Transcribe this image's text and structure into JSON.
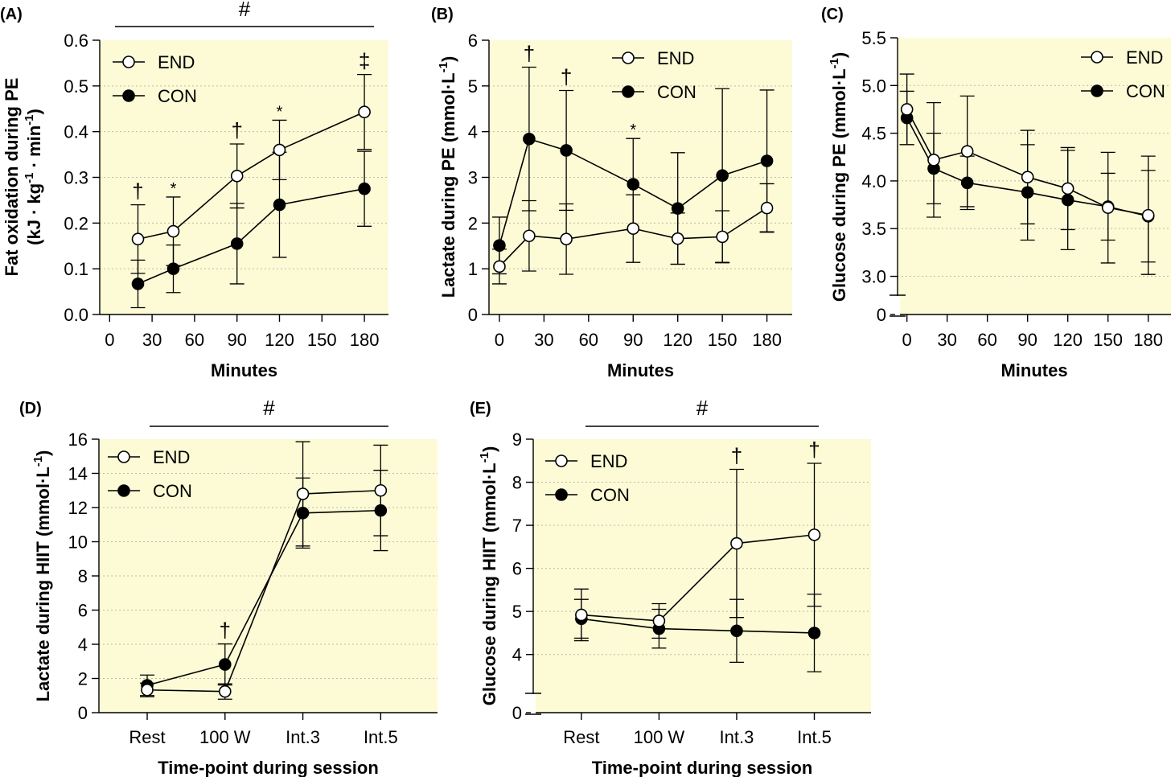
{
  "chart_data": [
    {
      "type": "line",
      "panel": "(A)",
      "ylabel": [
        "Fat oxidation during PE",
        "(kJ · kg-1 · min-1)"
      ],
      "xlabel": "Minutes",
      "ylim": [
        0,
        0.6
      ],
      "yticks": [
        "0.0",
        "0.1",
        "0.2",
        "0.3",
        "0.4",
        "0.5",
        "0.6"
      ],
      "xlim": [
        -7,
        197
      ],
      "xticks": [
        "0",
        "30",
        "60",
        "90",
        "120",
        "150",
        "180"
      ],
      "grid": true,
      "legend": [
        "END",
        "CON"
      ],
      "legend_position": "top-left",
      "bracket_label": "#",
      "x": [
        20,
        45,
        90,
        120,
        180
      ],
      "series": [
        {
          "name": "END",
          "marker": "open",
          "values": [
            0.165,
            0.182,
            0.303,
            0.36,
            0.443
          ],
          "err": [
            0.075,
            0.075,
            0.07,
            0.065,
            0.082
          ]
        },
        {
          "name": "CON",
          "marker": "filled",
          "values": [
            0.067,
            0.1,
            0.155,
            0.24,
            0.275
          ],
          "err": [
            0.052,
            0.052,
            0.088,
            0.115,
            0.082
          ]
        }
      ],
      "annotations": [
        {
          "x": 20,
          "text": "†"
        },
        {
          "x": 45,
          "text": "*"
        },
        {
          "x": 90,
          "text": "†"
        },
        {
          "x": 120,
          "text": "*"
        },
        {
          "x": 180,
          "text": "‡"
        }
      ]
    },
    {
      "type": "line",
      "panel": "(B)",
      "ylabel": [
        "Lactate during PE (mmol·L-1)"
      ],
      "xlabel": "Minutes",
      "ylim": [
        0,
        6
      ],
      "yticks": [
        "0",
        "1",
        "2",
        "3",
        "4",
        "5",
        "6"
      ],
      "xlim": [
        -7,
        197
      ],
      "xticks": [
        "0",
        "30",
        "60",
        "90",
        "120",
        "150",
        "180"
      ],
      "grid": true,
      "legend": [
        "END",
        "CON"
      ],
      "legend_position": "top-right",
      "x": [
        0,
        20,
        45,
        90,
        120,
        150,
        180
      ],
      "series": [
        {
          "name": "END",
          "marker": "open",
          "values": [
            1.05,
            1.72,
            1.65,
            1.88,
            1.66,
            1.7,
            2.33
          ],
          "err": [
            0.38,
            0.77,
            0.77,
            0.74,
            0.56,
            0.57,
            0.53
          ]
        },
        {
          "name": "CON",
          "marker": "filled",
          "values": [
            1.51,
            3.84,
            3.59,
            2.85,
            2.32,
            3.04,
            3.36
          ],
          "err": [
            0.62,
            1.57,
            1.31,
            1.0,
            1.22,
            1.9,
            1.55
          ]
        }
      ],
      "annotations": [
        {
          "x": 20,
          "text": "†"
        },
        {
          "x": 45,
          "text": "†"
        },
        {
          "x": 90,
          "text": "*"
        }
      ]
    },
    {
      "type": "line",
      "panel": "(C)",
      "ylabel": [
        "Glucose during PE (mmol·L-1)"
      ],
      "xlabel": "Minutes",
      "ylim": [
        2.6,
        5.5
      ],
      "yticks": [
        "0",
        "3.0",
        "3.5",
        "4.0",
        "4.5",
        "5.0",
        "5.5"
      ],
      "axis_break": true,
      "xlim": [
        -7,
        197
      ],
      "xticks": [
        "0",
        "30",
        "60",
        "90",
        "120",
        "150",
        "180"
      ],
      "grid": true,
      "legend": [
        "END",
        "CON"
      ],
      "legend_position": "top-right",
      "x": [
        0,
        20,
        45,
        90,
        120,
        150,
        180
      ],
      "series": [
        {
          "name": "END",
          "marker": "open",
          "values": [
            4.75,
            4.22,
            4.31,
            4.04,
            3.92,
            3.72,
            3.64
          ],
          "err": [
            0.37,
            0.6,
            0.58,
            0.49,
            0.43,
            0.58,
            0.62
          ]
        },
        {
          "name": "CON",
          "marker": "filled",
          "values": [
            4.66,
            4.13,
            3.98,
            3.88,
            3.8,
            3.73,
            3.63
          ],
          "err": [
            0.28,
            0.37,
            0.28,
            0.5,
            0.52,
            0.35,
            0.48
          ]
        }
      ]
    },
    {
      "type": "line",
      "panel": "(D)",
      "ylabel": [
        "Lactate during HIIT (mmol·L-1)"
      ],
      "xlabel": "Time-point during session",
      "ylim": [
        0,
        16
      ],
      "yticks": [
        "0",
        "2",
        "4",
        "6",
        "8",
        "10",
        "12",
        "14",
        "16"
      ],
      "categories": [
        "Rest",
        "100 W",
        "Int.3",
        "Int.5"
      ],
      "grid": true,
      "legend": [
        "END",
        "CON"
      ],
      "legend_position": "top-left",
      "bracket_label": "#",
      "series": [
        {
          "name": "END",
          "marker": "open",
          "values": [
            1.33,
            1.24,
            12.8,
            13.0
          ],
          "err": [
            0.4,
            0.45,
            3.05,
            2.65
          ]
        },
        {
          "name": "CON",
          "marker": "filled",
          "values": [
            1.6,
            2.82,
            11.68,
            11.83
          ],
          "err": [
            0.6,
            1.2,
            2.05,
            2.35
          ]
        }
      ],
      "annotations": [
        {
          "category": "100 W",
          "text": "†"
        }
      ]
    },
    {
      "type": "line",
      "panel": "(E)",
      "ylabel": [
        "Glucose during HIIT (mmol·L-1)"
      ],
      "xlabel": "Time-point during session",
      "ylim": [
        2.65,
        9
      ],
      "yticks": [
        "0",
        "4",
        "5",
        "6",
        "7",
        "8",
        "9"
      ],
      "axis_break": true,
      "categories": [
        "Rest",
        "100 W",
        "Int.3",
        "Int.5"
      ],
      "grid": true,
      "legend": [
        "END",
        "CON"
      ],
      "legend_position": "top-left",
      "bracket_label": "#",
      "series": [
        {
          "name": "END",
          "marker": "open",
          "values": [
            4.92,
            4.78,
            6.58,
            6.78
          ],
          "err": [
            0.6,
            0.4,
            1.72,
            1.66
          ]
        },
        {
          "name": "CON",
          "marker": "filled",
          "values": [
            4.83,
            4.6,
            4.55,
            4.5
          ],
          "err": [
            0.45,
            0.45,
            0.73,
            0.9
          ]
        }
      ],
      "annotations": [
        {
          "category": "Int.3",
          "text": "†"
        },
        {
          "category": "Int.5",
          "text": "†"
        }
      ]
    }
  ]
}
